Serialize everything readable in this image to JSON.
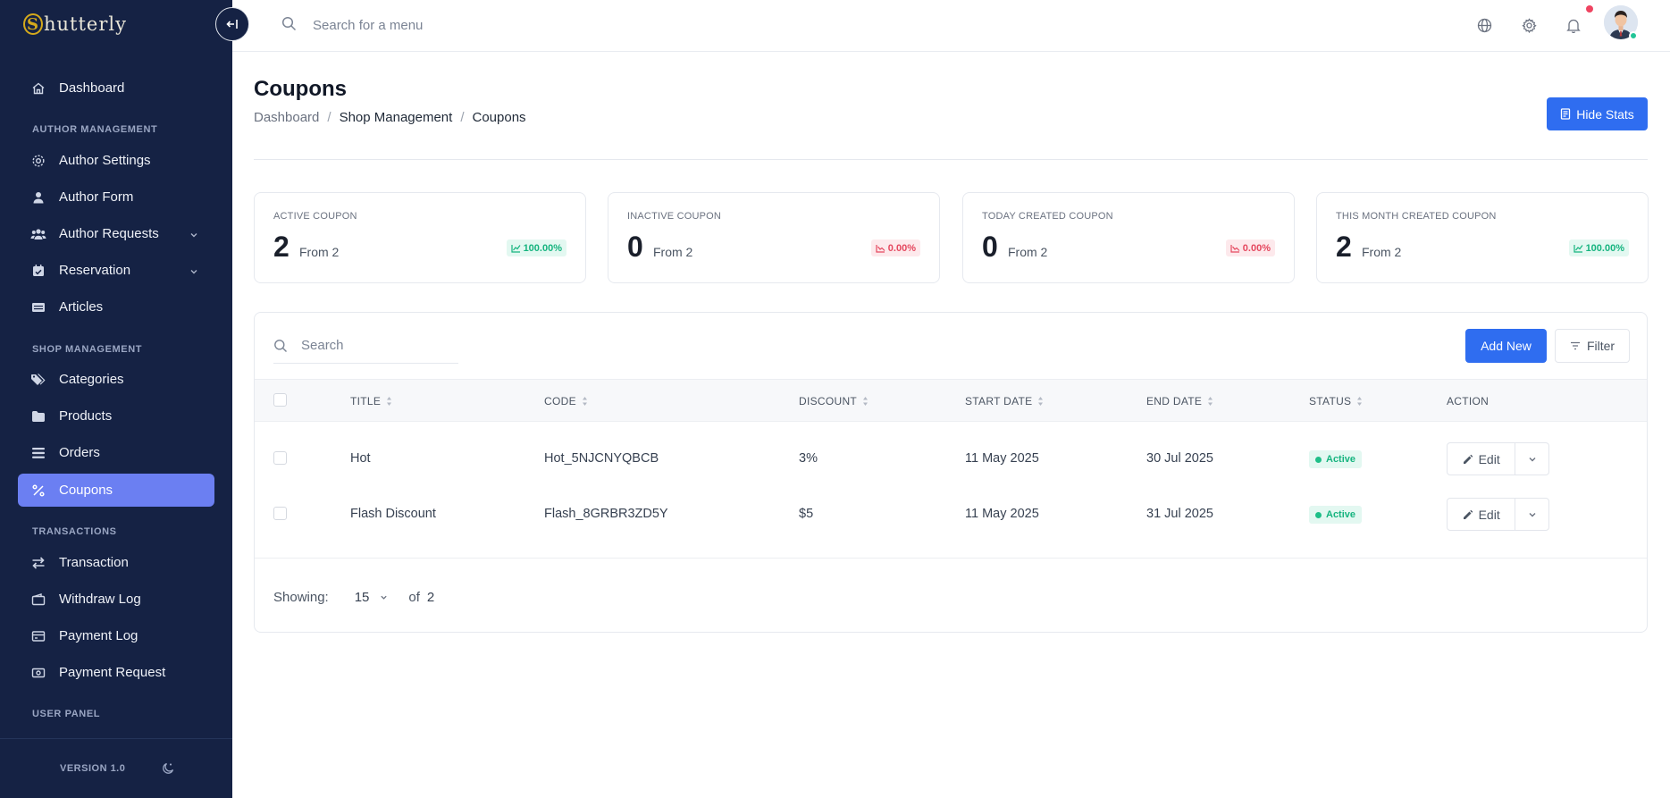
{
  "brand": {
    "name": "hutterly",
    "initial": "S"
  },
  "sidebar": {
    "items": [
      {
        "label": "Dashboard"
      },
      {
        "label": "Author Settings"
      },
      {
        "label": "Author Form"
      },
      {
        "label": "Author Requests"
      },
      {
        "label": "Reservation"
      },
      {
        "label": "Articles"
      },
      {
        "label": "Categories"
      },
      {
        "label": "Products"
      },
      {
        "label": "Orders"
      },
      {
        "label": "Coupons",
        "active": true
      },
      {
        "label": "Transaction"
      },
      {
        "label": "Withdraw Log"
      },
      {
        "label": "Payment Log"
      },
      {
        "label": "Payment Request"
      }
    ],
    "sections": [
      "AUTHOR MANAGEMENT",
      "SHOP MANAGEMENT",
      "TRANSACTIONS",
      "USER PANEL"
    ],
    "version": "VERSION 1.0",
    "active_color": "#6b7ff2",
    "background": "#152244"
  },
  "header": {
    "search_placeholder": "Search for a menu"
  },
  "page": {
    "title": "Coupons",
    "breadcrumb": [
      "Dashboard",
      "Shop Management",
      "Coupons"
    ],
    "hide_stats_label": "Hide Stats"
  },
  "stats": [
    {
      "label": "ACTIVE COUPON",
      "value": "2",
      "from": "From 2",
      "change": "100.00%",
      "trend": "up"
    },
    {
      "label": "INACTIVE COUPON",
      "value": "0",
      "from": "From 2",
      "change": "0.00%",
      "trend": "down"
    },
    {
      "label": "TODAY CREATED COUPON",
      "value": "0",
      "from": "From 2",
      "change": "0.00%",
      "trend": "down"
    },
    {
      "label": "THIS MONTH CREATED COUPON",
      "value": "2",
      "from": "From 2",
      "change": "100.00%",
      "trend": "up"
    }
  ],
  "table": {
    "search_placeholder": "Search",
    "add_new_label": "Add New",
    "filter_label": "Filter",
    "columns": [
      "TITLE",
      "CODE",
      "DISCOUNT",
      "START DATE",
      "END DATE",
      "STATUS",
      "ACTION"
    ],
    "rows": [
      {
        "title": "Hot",
        "code": "Hot_5NJCNYQBCB",
        "discount": "3%",
        "start": "11 May 2025",
        "end": "30 Jul 2025",
        "status": "Active",
        "action": "Edit"
      },
      {
        "title": "Flash Discount",
        "code": "Flash_8GRBR3ZD5Y",
        "discount": "$5",
        "start": "11 May 2025",
        "end": "31 Jul 2025",
        "status": "Active",
        "action": "Edit"
      }
    ],
    "pagination": {
      "showing_label": "Showing:",
      "per_page": "15",
      "of_label": "of",
      "total": "2"
    }
  },
  "colors": {
    "primary": "#2f6df0",
    "success": "#16b47f",
    "danger": "#e5485f"
  }
}
